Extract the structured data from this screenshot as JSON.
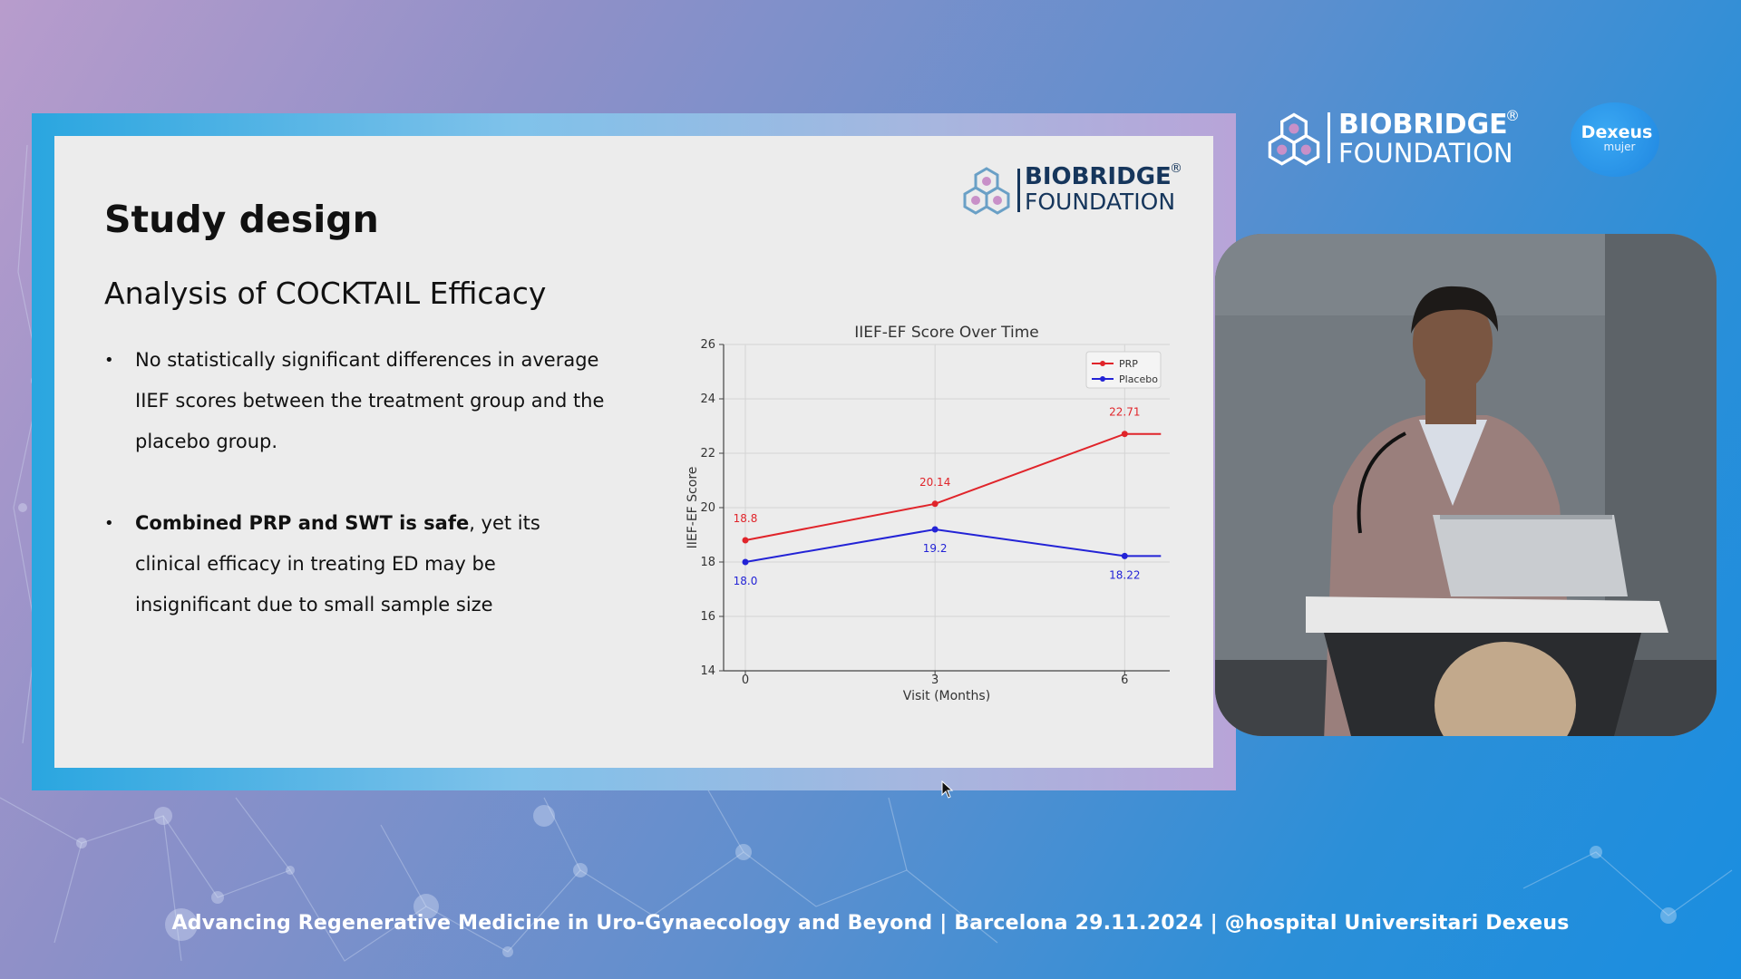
{
  "slide": {
    "title": "Study design",
    "subtitle": "Analysis of COCKTAIL Efficacy",
    "bullets": [
      {
        "bold": "",
        "text": "No statistically significant differences in average IIEF scores between the treatment group and the placebo group."
      },
      {
        "bold": "Combined PRP and SWT is safe",
        "text": ", yet its clinical efficacy in treating ED may be insignificant due to small sample size"
      }
    ],
    "logo": {
      "line1": "BIOBRIDGE",
      "reg": "®",
      "line2": "FOUNDATION",
      "icon": "hexagon-molecule-icon"
    }
  },
  "chart_data": {
    "type": "line",
    "title": "IIEF-EF Score Over Time",
    "xlabel": "Visit (Months)",
    "ylabel": "IIEF-EF Score",
    "x": [
      0,
      3,
      6
    ],
    "x_ticks": [
      "0",
      "3",
      "6"
    ],
    "y_ticks": [
      "14",
      "16",
      "18",
      "20",
      "22",
      "24",
      "26"
    ],
    "ylim": [
      14,
      26
    ],
    "grid": true,
    "legend": "top-right",
    "series": [
      {
        "name": "PRP",
        "color": "#e0242a",
        "values": [
          18.8,
          20.14,
          22.71
        ],
        "labels": [
          "18.8",
          "20.14",
          "22.71"
        ]
      },
      {
        "name": "Placebo",
        "color": "#2323d6",
        "values": [
          18.0,
          19.2,
          18.22
        ],
        "labels": [
          "18.0",
          "19.2",
          "18.22"
        ]
      }
    ]
  },
  "header_logo": {
    "line1": "BIOBRIDGE",
    "reg": "®",
    "line2": "FOUNDATION"
  },
  "partner_logo": {
    "name": "Dexeus",
    "sub": "mujer"
  },
  "video": {
    "description_icon": "speaker-video-feed"
  },
  "footer": {
    "text": "Advancing Regenerative Medicine in Uro-Gynaecology and Beyond | Barcelona 29.11.2024 | @hospital Universitari Dexeus"
  },
  "colors": {
    "slide_bg": "#ececec",
    "prp": "#e0242a",
    "placebo": "#2323d6",
    "brand_navy": "#16365c"
  }
}
